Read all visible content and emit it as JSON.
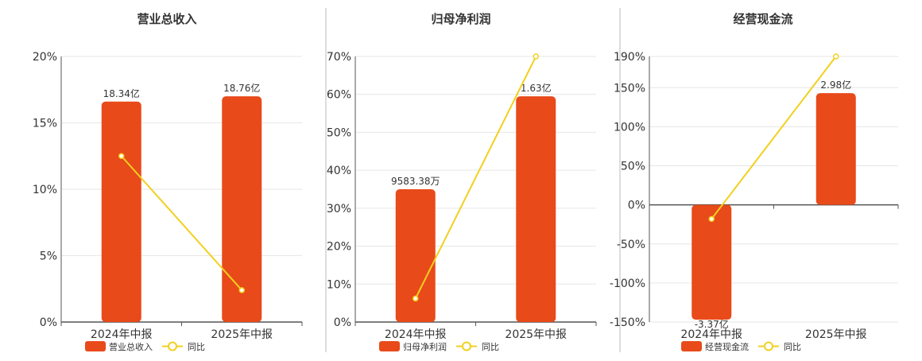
{
  "colors": {
    "bar": "#E84A1A",
    "line": "#F2D01E",
    "grid": "#E6E6E6",
    "axis": "#555555",
    "text": "#333333",
    "separator": "#BBBBBB"
  },
  "chart_data": [
    {
      "type": "bar",
      "title": "营业总收入",
      "categories": [
        "2024年中报",
        "2025年中报"
      ],
      "bar_labels": [
        "18.34亿",
        "18.76亿"
      ],
      "bar_values": [
        16.6,
        17.0
      ],
      "yoy_values": [
        12.5,
        2.4
      ],
      "yticks": [
        "0%",
        "5%",
        "10%",
        "15%",
        "20%"
      ],
      "ylim": [
        0,
        20
      ],
      "legend": [
        "营业总收入",
        "同比"
      ],
      "grid": true
    },
    {
      "type": "bar",
      "title": "归母净利润",
      "categories": [
        "2024年中报",
        "2025年中报"
      ],
      "bar_labels": [
        "9583.38万",
        "1.63亿"
      ],
      "bar_values": [
        35,
        59.5
      ],
      "yoy_values": [
        6.2,
        70
      ],
      "yticks": [
        "0%",
        "10%",
        "20%",
        "30%",
        "40%",
        "50%",
        "60%",
        "70%"
      ],
      "ylim": [
        0,
        70
      ],
      "legend": [
        "归母净利润",
        "同比"
      ],
      "grid": true
    },
    {
      "type": "bar",
      "title": "经营现金流",
      "categories": [
        "2024年中报",
        "2025年中报"
      ],
      "bar_labels": [
        "-3.37亿",
        "2.98亿"
      ],
      "bar_values": [
        -147,
        143
      ],
      "yoy_values": [
        -18,
        190
      ],
      "yticks": [
        "-150%",
        "-100%",
        "-50%",
        "0%",
        "50%",
        "100%",
        "150%",
        "190%"
      ],
      "ylim": [
        -150,
        190
      ],
      "legend": [
        "经营现金流",
        "同比"
      ],
      "grid": true
    }
  ]
}
